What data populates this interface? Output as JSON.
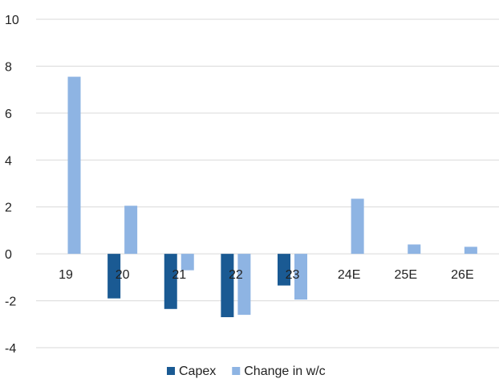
{
  "chart_data": {
    "type": "bar",
    "categories": [
      "19",
      "20",
      "21",
      "22",
      "23",
      "24E",
      "25E",
      "26E"
    ],
    "series": [
      {
        "name": "Capex",
        "color": "#1a5a93",
        "values": [
          null,
          -1.9,
          -2.35,
          -2.7,
          -1.35,
          null,
          null,
          null
        ]
      },
      {
        "name": "Change in w/c",
        "color": "#8eb4e3",
        "values": [
          7.55,
          2.05,
          -0.7,
          -2.6,
          -1.95,
          2.35,
          0.4,
          0.3
        ]
      }
    ],
    "ylim": [
      -4,
      10
    ],
    "yticks": [
      10,
      8,
      6,
      4,
      2,
      0,
      -2,
      -4
    ],
    "ytick_labels": [
      "10",
      "8",
      "6",
      "4",
      "2",
      "0",
      "-2",
      "-4"
    ],
    "grid": true,
    "legend": "bottom",
    "gridline_color": "#d9d9d9"
  }
}
